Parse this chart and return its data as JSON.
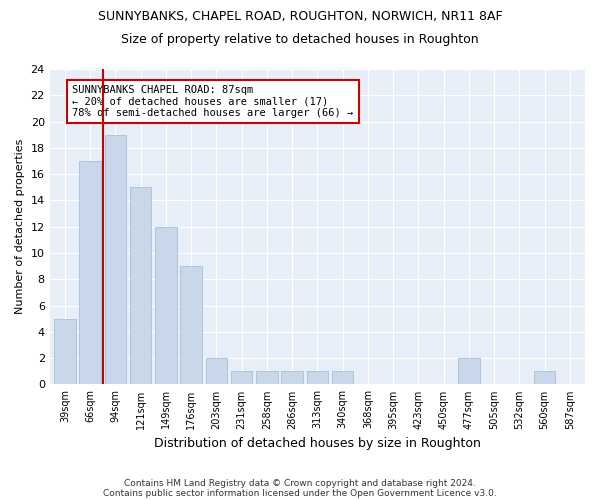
{
  "title": "SUNNYBANKS, CHAPEL ROAD, ROUGHTON, NORWICH, NR11 8AF",
  "subtitle": "Size of property relative to detached houses in Roughton",
  "xlabel": "Distribution of detached houses by size in Roughton",
  "ylabel": "Number of detached properties",
  "categories": [
    "39sqm",
    "66sqm",
    "94sqm",
    "121sqm",
    "149sqm",
    "176sqm",
    "203sqm",
    "231sqm",
    "258sqm",
    "286sqm",
    "313sqm",
    "340sqm",
    "368sqm",
    "395sqm",
    "423sqm",
    "450sqm",
    "477sqm",
    "505sqm",
    "532sqm",
    "560sqm",
    "587sqm"
  ],
  "values": [
    5,
    17,
    19,
    15,
    12,
    9,
    2,
    1,
    1,
    1,
    1,
    1,
    0,
    0,
    0,
    0,
    2,
    0,
    0,
    1,
    0
  ],
  "bar_color": "#c8d8ea",
  "bar_edge_color": "#a8c0d8",
  "highlight_line_color": "#cc0000",
  "annotation_text": "SUNNYBANKS CHAPEL ROAD: 87sqm\n← 20% of detached houses are smaller (17)\n78% of semi-detached houses are larger (66) →",
  "annotation_box_color": "#cc0000",
  "ylim": [
    0,
    24
  ],
  "yticks": [
    0,
    2,
    4,
    6,
    8,
    10,
    12,
    14,
    16,
    18,
    20,
    22,
    24
  ],
  "footer1": "Contains HM Land Registry data © Crown copyright and database right 2024.",
  "footer2": "Contains public sector information licensed under the Open Government Licence v3.0.",
  "bg_color": "#ffffff",
  "plot_bg_color": "#e8eef8",
  "grid_color": "#ffffff"
}
